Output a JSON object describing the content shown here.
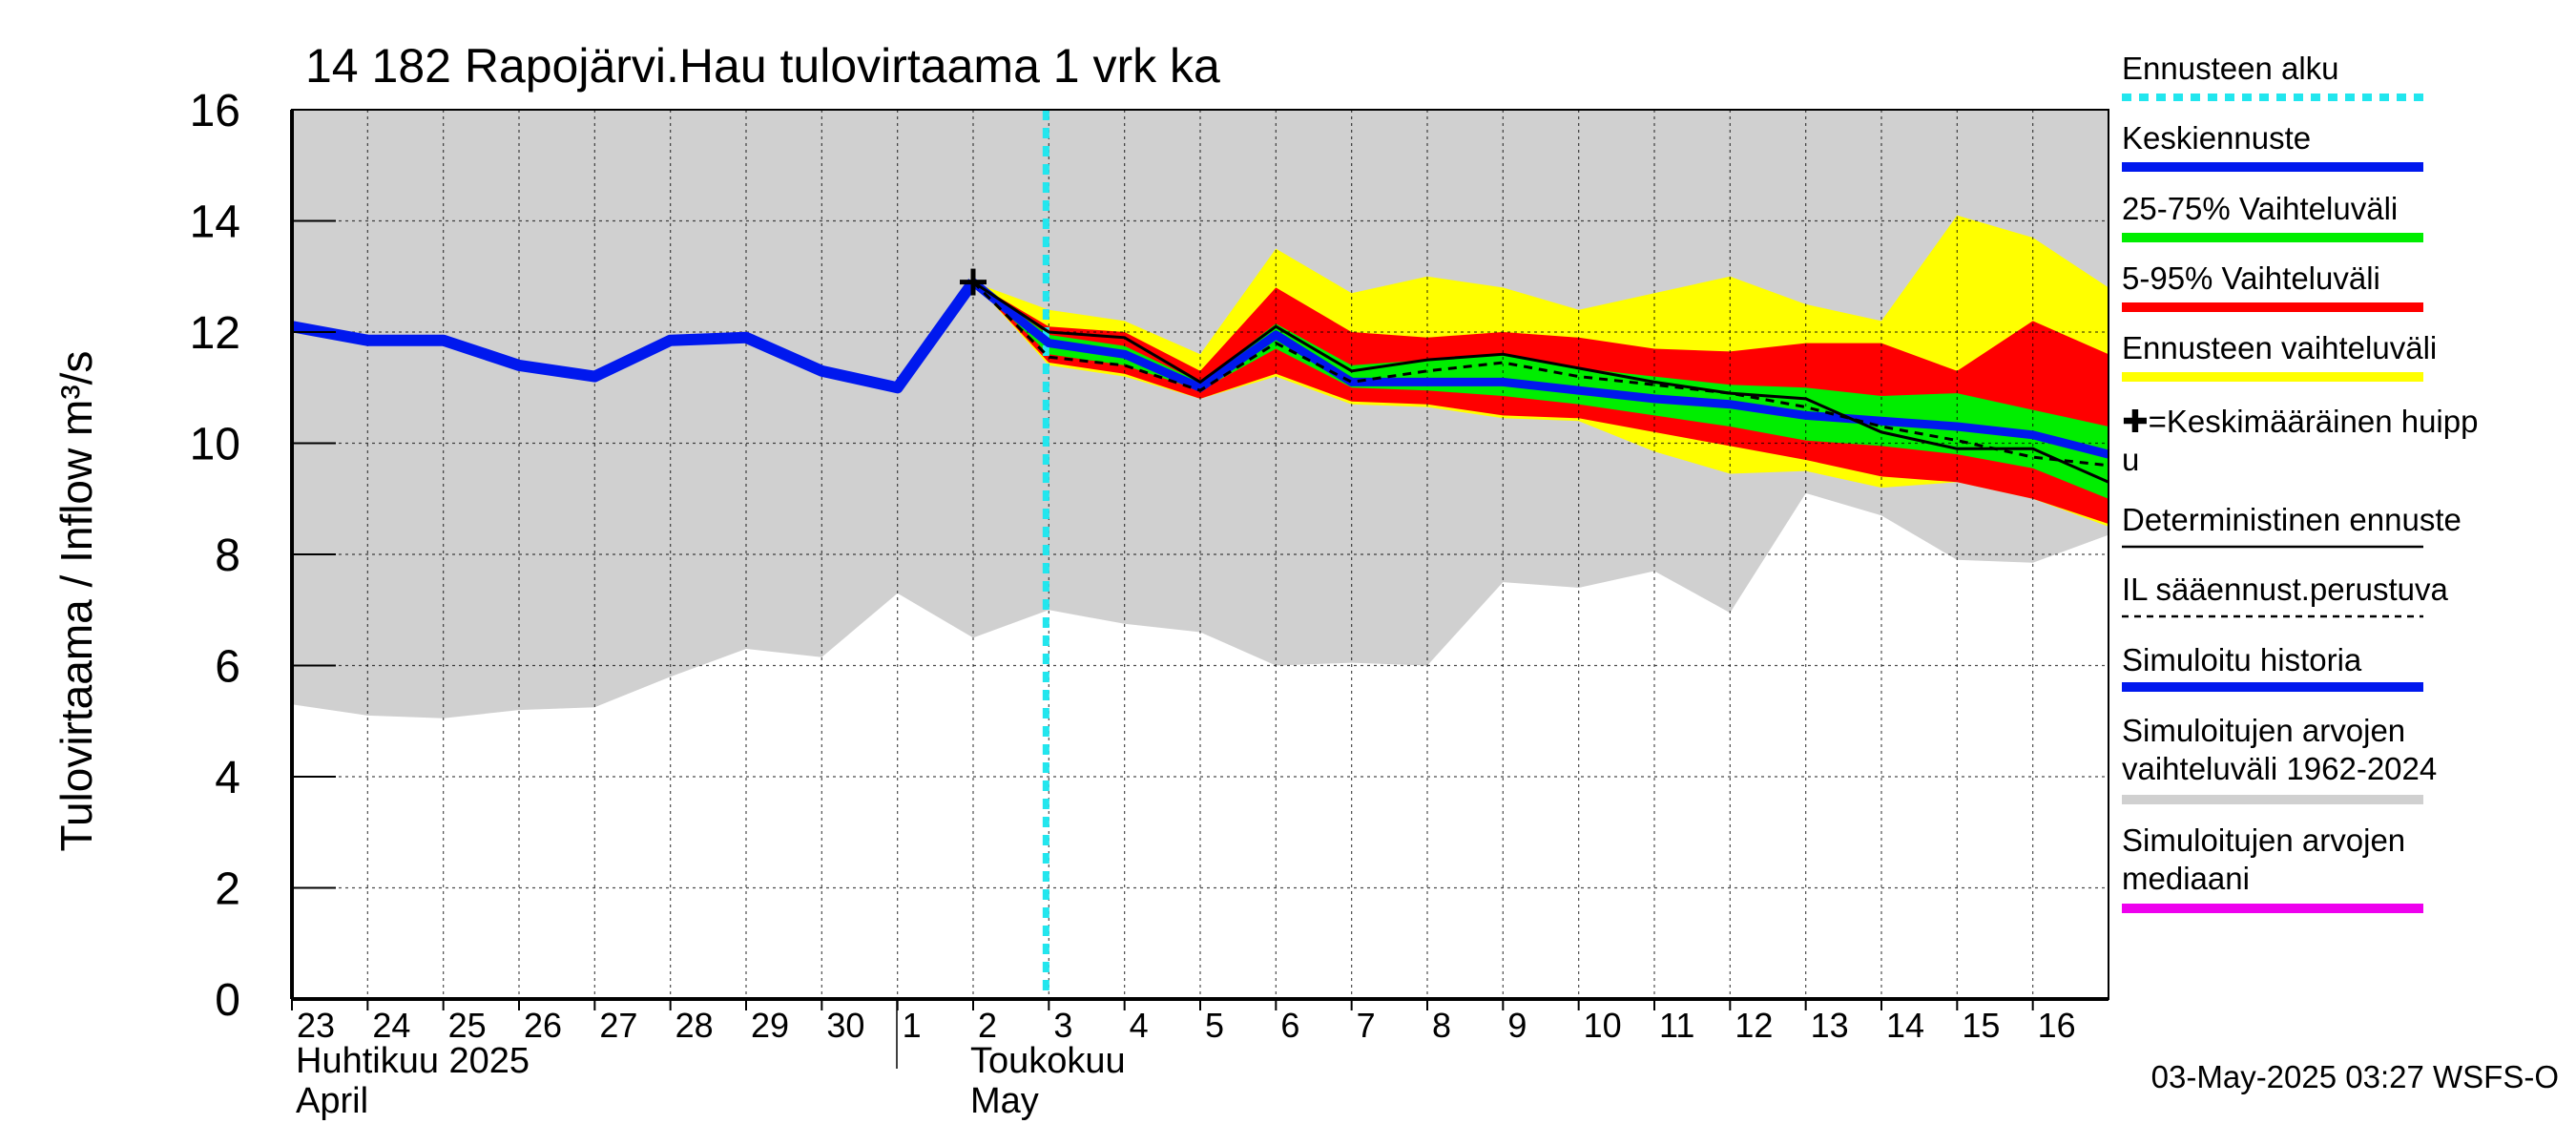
{
  "chart_data": {
    "type": "area",
    "title": "14 182 Rapojärvi.Hau tulovirtaama 1 vrk ka",
    "ylabel": "Tulovirtaama / Inflow   m³/s",
    "ylim": [
      0,
      16
    ],
    "yticks": [
      0,
      2,
      4,
      6,
      8,
      10,
      12,
      14,
      16
    ],
    "x_tick_labels": [
      "23",
      "24",
      "25",
      "26",
      "27",
      "28",
      "29",
      "30",
      "1",
      "2",
      "3",
      "4",
      "5",
      "6",
      "7",
      "8",
      "9",
      "10",
      "11",
      "12",
      "13",
      "14",
      "15",
      "16"
    ],
    "month_labels": [
      {
        "fi": "Huhtikuu  2025",
        "en": "April"
      },
      {
        "fi": "Toukokuu",
        "en": "May"
      }
    ],
    "forecast_start_index": 10,
    "timestamp": "03-May-2025 03:27 WSFS-O",
    "grid": true,
    "legend_position": "right",
    "legend": [
      {
        "label": "Ennusteen alku",
        "color": "#22e6ee",
        "style": "dotted"
      },
      {
        "label": "Keskiennuste",
        "color": "#0018ee",
        "style": "solid"
      },
      {
        "label": "25-75% Vaihteluväli",
        "color": "#00ee00",
        "style": "solid"
      },
      {
        "label": "5-95% Vaihteluväli",
        "color": "#ff0000",
        "style": "solid"
      },
      {
        "label": "Ennusteen vaihteluväli",
        "color": "#ffff00",
        "style": "solid"
      },
      {
        "label": "✚=Keskimääräinen huipp\nu",
        "color": "#000000",
        "style": "marker"
      },
      {
        "label": "Deterministinen ennuste",
        "color": "#000000",
        "style": "thin"
      },
      {
        "label": "IL sääennust.perustuva",
        "color": "#000000",
        "style": "dashed"
      },
      {
        "label": "Simuloitu historia",
        "color": "#0018ee",
        "style": "solid"
      },
      {
        "label": "Simuloitujen arvojen\nvaihteluväli 1962-2024",
        "color": "#d0d0d0",
        "style": "solid"
      },
      {
        "label": "Simuloitujen arvojen\nmediaani",
        "color": "#ee00ee",
        "style": "solid"
      }
    ],
    "series": {
      "hist_range_x": [
        0,
        1,
        2,
        3,
        4,
        5,
        6,
        7,
        8,
        9,
        10,
        11,
        12,
        13,
        14,
        15,
        16,
        17,
        18,
        19,
        20,
        21,
        22,
        23,
        24
      ],
      "hist_range_upper": [
        16,
        16,
        16,
        16,
        16,
        16,
        16,
        16,
        16,
        16,
        16,
        16,
        16,
        16,
        16,
        16,
        16,
        16,
        16,
        16,
        16,
        16,
        16,
        16,
        16
      ],
      "hist_range_lower": [
        5.3,
        5.1,
        5.05,
        5.2,
        5.25,
        5.8,
        6.3,
        6.15,
        7.3,
        6.5,
        7.0,
        6.75,
        6.6,
        6.0,
        6.05,
        6.0,
        7.5,
        7.4,
        7.7,
        6.95,
        9.1,
        8.7,
        7.9,
        7.85,
        8.35
      ],
      "simulated_history_x": [
        0,
        1,
        2,
        3,
        4,
        5,
        6,
        7,
        8,
        9
      ],
      "simulated_history": [
        12.1,
        11.85,
        11.85,
        11.4,
        11.2,
        11.85,
        11.9,
        11.3,
        11.0,
        12.9
      ],
      "forecast_x": [
        9,
        10,
        11,
        12,
        13,
        14,
        15,
        16,
        17,
        18,
        19,
        20,
        21,
        22,
        23,
        24
      ],
      "ens_upper": [
        12.9,
        12.4,
        12.2,
        11.6,
        13.5,
        12.7,
        13.0,
        12.8,
        12.4,
        12.7,
        13.0,
        12.5,
        12.2,
        14.1,
        13.7,
        12.8
      ],
      "ens_lower": [
        12.9,
        11.4,
        11.2,
        10.8,
        11.2,
        10.7,
        10.65,
        10.45,
        10.4,
        9.85,
        9.45,
        9.5,
        9.2,
        9.3,
        9.0,
        8.5
      ],
      "p95": [
        12.9,
        12.1,
        12.0,
        11.3,
        12.8,
        12.0,
        11.9,
        12.0,
        11.9,
        11.7,
        11.65,
        11.8,
        11.8,
        11.3,
        12.2,
        11.6
      ],
      "p05": [
        12.9,
        11.45,
        11.25,
        10.8,
        11.25,
        10.75,
        10.7,
        10.5,
        10.45,
        10.2,
        9.95,
        9.7,
        9.4,
        9.3,
        9.0,
        8.55
      ],
      "p75": [
        12.9,
        11.95,
        11.75,
        11.1,
        12.15,
        11.4,
        11.5,
        11.6,
        11.35,
        11.2,
        11.05,
        11.0,
        10.85,
        10.9,
        10.6,
        10.3
      ],
      "p25": [
        12.9,
        11.6,
        11.4,
        10.95,
        11.7,
        11.0,
        10.95,
        10.85,
        10.7,
        10.5,
        10.3,
        10.05,
        9.95,
        9.8,
        9.55,
        9.0
      ],
      "mean_forecast": [
        12.9,
        11.8,
        11.6,
        11.0,
        11.95,
        11.1,
        11.1,
        11.1,
        10.95,
        10.8,
        10.7,
        10.5,
        10.4,
        10.3,
        10.15,
        9.8
      ],
      "deterministic": [
        12.9,
        12.0,
        11.9,
        11.1,
        12.1,
        11.3,
        11.5,
        11.6,
        11.35,
        11.1,
        10.9,
        10.8,
        10.2,
        9.9,
        9.9,
        9.3
      ],
      "il_forecast": [
        12.9,
        11.55,
        11.4,
        10.95,
        11.8,
        11.1,
        11.3,
        11.45,
        11.2,
        11.05,
        10.9,
        10.65,
        10.3,
        10.05,
        9.75,
        9.6
      ],
      "mean_peak": {
        "x": 9,
        "y": 12.9
      }
    }
  }
}
